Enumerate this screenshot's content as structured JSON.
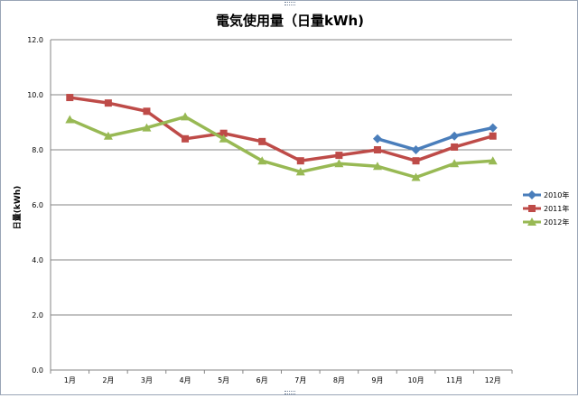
{
  "chart_data": {
    "type": "line",
    "title": "電気使用量（日量kWh)",
    "xlabel": "",
    "ylabel": "日量(kWh)",
    "categories": [
      "1月",
      "2月",
      "3月",
      "4月",
      "5月",
      "6月",
      "7月",
      "8月",
      "9月",
      "10月",
      "11月",
      "12月"
    ],
    "ylim": [
      0,
      12
    ],
    "yticks": [
      "0.0",
      "2.0",
      "4.0",
      "6.0",
      "8.0",
      "10.0",
      "12.0"
    ],
    "grid": true,
    "legend": "right",
    "series": [
      {
        "name": "2010年",
        "color": "#4a7ebb",
        "marker": "diamond",
        "values": [
          null,
          null,
          null,
          null,
          null,
          null,
          null,
          null,
          8.4,
          8.0,
          8.5,
          8.8
        ]
      },
      {
        "name": "2011年",
        "color": "#be4b48",
        "marker": "square",
        "values": [
          9.9,
          9.7,
          9.4,
          8.4,
          8.6,
          8.3,
          7.6,
          7.8,
          8.0,
          7.6,
          8.1,
          8.5
        ]
      },
      {
        "name": "2012年",
        "color": "#98b954",
        "marker": "triangle",
        "values": [
          9.1,
          8.5,
          8.8,
          9.2,
          8.4,
          7.6,
          7.2,
          7.5,
          7.4,
          7.0,
          7.5,
          7.6
        ]
      }
    ]
  }
}
